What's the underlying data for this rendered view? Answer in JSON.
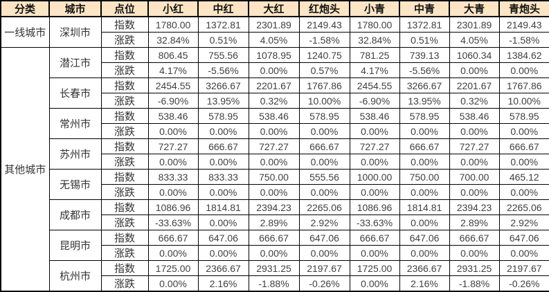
{
  "colors": {
    "header_bg": "#FBE5C3",
    "positive_red": "#FB3B3B",
    "negative_green": "#3FBF7F",
    "neutral_text": "#404040",
    "border": "#000000"
  },
  "table": {
    "headers": [
      "分类",
      "城市",
      "点位",
      "小红",
      "中红",
      "大红",
      "红炮头",
      "小青",
      "中青",
      "大青",
      "青炮头"
    ],
    "row_labels": {
      "index": "指数",
      "change": "涨跌"
    },
    "categories": [
      {
        "name": "一线城市",
        "cities": [
          {
            "name": "深圳市",
            "index": [
              "1780.00",
              "1372.81",
              "2301.89",
              "2149.43",
              "1780.00",
              "1372.81",
              "2301.89",
              "2149.43"
            ],
            "change": [
              {
                "v": "32.84%",
                "c": "red"
              },
              {
                "v": "0.51%",
                "c": "red"
              },
              {
                "v": "4.05%",
                "c": "red"
              },
              {
                "v": "-1.58%",
                "c": "green"
              },
              {
                "v": "32.84%",
                "c": "red"
              },
              {
                "v": "0.51%",
                "c": "red"
              },
              {
                "v": "4.05%",
                "c": "red"
              },
              {
                "v": "-1.58%",
                "c": "green"
              }
            ]
          }
        ]
      },
      {
        "name": "其他城市",
        "cities": [
          {
            "name": "潜江市",
            "index": [
              "806.45",
              "755.56",
              "1078.95",
              "1240.75",
              "781.25",
              "739.13",
              "1060.34",
              "1384.62"
            ],
            "change": [
              {
                "v": "4.17%",
                "c": "red"
              },
              {
                "v": "-5.56%",
                "c": "green"
              },
              {
                "v": "0.00%",
                "c": "black"
              },
              {
                "v": "0.57%",
                "c": "red"
              },
              {
                "v": "4.17%",
                "c": "red"
              },
              {
                "v": "-5.56%",
                "c": "green"
              },
              {
                "v": "0.00%",
                "c": "black"
              },
              {
                "v": "0.00%",
                "c": "black"
              }
            ]
          },
          {
            "name": "长春市",
            "index": [
              "2454.55",
              "3266.67",
              "2201.67",
              "1767.86",
              "2454.55",
              "3266.67",
              "2201.67",
              "1767.86"
            ],
            "change": [
              {
                "v": "-6.90%",
                "c": "green"
              },
              {
                "v": "13.95%",
                "c": "red"
              },
              {
                "v": "0.32%",
                "c": "red"
              },
              {
                "v": "10.00%",
                "c": "red"
              },
              {
                "v": "-6.90%",
                "c": "green"
              },
              {
                "v": "13.95%",
                "c": "red"
              },
              {
                "v": "0.32%",
                "c": "red"
              },
              {
                "v": "10.00%",
                "c": "red"
              }
            ]
          },
          {
            "name": "常州市",
            "index": [
              "538.46",
              "578.95",
              "538.46",
              "578.95",
              "538.46",
              "578.95",
              "538.46",
              "578.95"
            ],
            "change": [
              {
                "v": "0.00%",
                "c": "black"
              },
              {
                "v": "0.00%",
                "c": "black"
              },
              {
                "v": "0.00%",
                "c": "black"
              },
              {
                "v": "0.00%",
                "c": "black"
              },
              {
                "v": "0.00%",
                "c": "black"
              },
              {
                "v": "0.00%",
                "c": "black"
              },
              {
                "v": "0.00%",
                "c": "black"
              },
              {
                "v": "0.00%",
                "c": "black"
              }
            ]
          },
          {
            "name": "苏州市",
            "index": [
              "727.27",
              "666.67",
              "727.27",
              "666.67",
              "727.27",
              "666.67",
              "727.27",
              "666.67"
            ],
            "change": [
              {
                "v": "0.00%",
                "c": "black"
              },
              {
                "v": "0.00%",
                "c": "black"
              },
              {
                "v": "0.00%",
                "c": "black"
              },
              {
                "v": "0.00%",
                "c": "black"
              },
              {
                "v": "0.00%",
                "c": "black"
              },
              {
                "v": "0.00%",
                "c": "black"
              },
              {
                "v": "0.00%",
                "c": "black"
              },
              {
                "v": "0.00%",
                "c": "black"
              }
            ]
          },
          {
            "name": "无锡市",
            "index": [
              "833.33",
              "833.33",
              "750.00",
              "555.56",
              "1000.00",
              "750.00",
              "700.00",
              "465.12"
            ],
            "change": [
              {
                "v": "0.00%",
                "c": "black"
              },
              {
                "v": "0.00%",
                "c": "black"
              },
              {
                "v": "0.00%",
                "c": "black"
              },
              {
                "v": "0.00%",
                "c": "black"
              },
              {
                "v": "0.00%",
                "c": "black"
              },
              {
                "v": "0.00%",
                "c": "black"
              },
              {
                "v": "0.00%",
                "c": "black"
              },
              {
                "v": "0.00%",
                "c": "black"
              }
            ]
          },
          {
            "name": "成都市",
            "index": [
              "1086.96",
              "1814.81",
              "2394.23",
              "2265.06",
              "1086.96",
              "1814.81",
              "2394.23",
              "2265.06"
            ],
            "change": [
              {
                "v": "-33.63%",
                "c": "green"
              },
              {
                "v": "0.00%",
                "c": "red"
              },
              {
                "v": "2.89%",
                "c": "red"
              },
              {
                "v": "2.92%",
                "c": "red"
              },
              {
                "v": "-33.63%",
                "c": "green"
              },
              {
                "v": "0.00%",
                "c": "red"
              },
              {
                "v": "2.89%",
                "c": "red"
              },
              {
                "v": "2.92%",
                "c": "red"
              }
            ]
          },
          {
            "name": "昆明市",
            "index": [
              "666.67",
              "647.06",
              "666.67",
              "647.06",
              "666.67",
              "647.06",
              "666.67",
              "647.06"
            ],
            "change": [
              {
                "v": "0.00%",
                "c": "black"
              },
              {
                "v": "0.00%",
                "c": "black"
              },
              {
                "v": "0.00%",
                "c": "black"
              },
              {
                "v": "0.00%",
                "c": "black"
              },
              {
                "v": "0.00%",
                "c": "black"
              },
              {
                "v": "0.00%",
                "c": "black"
              },
              {
                "v": "0.00%",
                "c": "black"
              },
              {
                "v": "0.00%",
                "c": "black"
              }
            ]
          },
          {
            "name": "杭州市",
            "index": [
              "1725.00",
              "2366.67",
              "2931.25",
              "2197.67",
              "1725.00",
              "2366.67",
              "2931.25",
              "2197.67"
            ],
            "change": [
              {
                "v": "0.00%",
                "c": "black"
              },
              {
                "v": "2.16%",
                "c": "red"
              },
              {
                "v": "-1.88%",
                "c": "green"
              },
              {
                "v": "-0.26%",
                "c": "green"
              },
              {
                "v": "0.00%",
                "c": "black"
              },
              {
                "v": "2.16%",
                "c": "red"
              },
              {
                "v": "-1.88%",
                "c": "green"
              },
              {
                "v": "-0.26%",
                "c": "green"
              }
            ]
          }
        ]
      }
    ]
  },
  "chart_data": {
    "type": "table",
    "columns": [
      "分类",
      "城市",
      "点位",
      "小红",
      "中红",
      "大红",
      "红炮头",
      "小青",
      "中青",
      "大青",
      "青炮头"
    ],
    "rows": [
      [
        "一线城市",
        "深圳市",
        "指数",
        "1780.00",
        "1372.81",
        "2301.89",
        "2149.43",
        "1780.00",
        "1372.81",
        "2301.89",
        "2149.43"
      ],
      [
        "一线城市",
        "深圳市",
        "涨跌",
        "32.84%",
        "0.51%",
        "4.05%",
        "-1.58%",
        "32.84%",
        "0.51%",
        "4.05%",
        "-1.58%"
      ],
      [
        "其他城市",
        "潜江市",
        "指数",
        "806.45",
        "755.56",
        "1078.95",
        "1240.75",
        "781.25",
        "739.13",
        "1060.34",
        "1384.62"
      ],
      [
        "其他城市",
        "潜江市",
        "涨跌",
        "4.17%",
        "-5.56%",
        "0.00%",
        "0.57%",
        "4.17%",
        "-5.56%",
        "0.00%",
        "0.00%"
      ],
      [
        "其他城市",
        "长春市",
        "指数",
        "2454.55",
        "3266.67",
        "2201.67",
        "1767.86",
        "2454.55",
        "3266.67",
        "2201.67",
        "1767.86"
      ],
      [
        "其他城市",
        "长春市",
        "涨跌",
        "-6.90%",
        "13.95%",
        "0.32%",
        "10.00%",
        "-6.90%",
        "13.95%",
        "0.32%",
        "10.00%"
      ],
      [
        "其他城市",
        "常州市",
        "指数",
        "538.46",
        "578.95",
        "538.46",
        "578.95",
        "538.46",
        "578.95",
        "538.46",
        "578.95"
      ],
      [
        "其他城市",
        "常州市",
        "涨跌",
        "0.00%",
        "0.00%",
        "0.00%",
        "0.00%",
        "0.00%",
        "0.00%",
        "0.00%",
        "0.00%"
      ],
      [
        "其他城市",
        "苏州市",
        "指数",
        "727.27",
        "666.67",
        "727.27",
        "666.67",
        "727.27",
        "666.67",
        "727.27",
        "666.67"
      ],
      [
        "其他城市",
        "苏州市",
        "涨跌",
        "0.00%",
        "0.00%",
        "0.00%",
        "0.00%",
        "0.00%",
        "0.00%",
        "0.00%",
        "0.00%"
      ],
      [
        "其他城市",
        "无锡市",
        "指数",
        "833.33",
        "833.33",
        "750.00",
        "555.56",
        "1000.00",
        "750.00",
        "700.00",
        "465.12"
      ],
      [
        "其他城市",
        "无锡市",
        "涨跌",
        "0.00%",
        "0.00%",
        "0.00%",
        "0.00%",
        "0.00%",
        "0.00%",
        "0.00%",
        "0.00%"
      ],
      [
        "其他城市",
        "成都市",
        "指数",
        "1086.96",
        "1814.81",
        "2394.23",
        "2265.06",
        "1086.96",
        "1814.81",
        "2394.23",
        "2265.06"
      ],
      [
        "其他城市",
        "成都市",
        "涨跌",
        "-33.63%",
        "0.00%",
        "2.89%",
        "2.92%",
        "-33.63%",
        "0.00%",
        "2.89%",
        "2.92%"
      ],
      [
        "其他城市",
        "昆明市",
        "指数",
        "666.67",
        "647.06",
        "666.67",
        "647.06",
        "666.67",
        "647.06",
        "666.67",
        "647.06"
      ],
      [
        "其他城市",
        "昆明市",
        "涨跌",
        "0.00%",
        "0.00%",
        "0.00%",
        "0.00%",
        "0.00%",
        "0.00%",
        "0.00%",
        "0.00%"
      ],
      [
        "其他城市",
        "杭州市",
        "指数",
        "1725.00",
        "2366.67",
        "2931.25",
        "2197.67",
        "1725.00",
        "2366.67",
        "2931.25",
        "2197.67"
      ],
      [
        "其他城市",
        "杭州市",
        "涨跌",
        "0.00%",
        "2.16%",
        "-1.88%",
        "-0.26%",
        "0.00%",
        "2.16%",
        "-1.88%",
        "-0.26%"
      ]
    ]
  }
}
